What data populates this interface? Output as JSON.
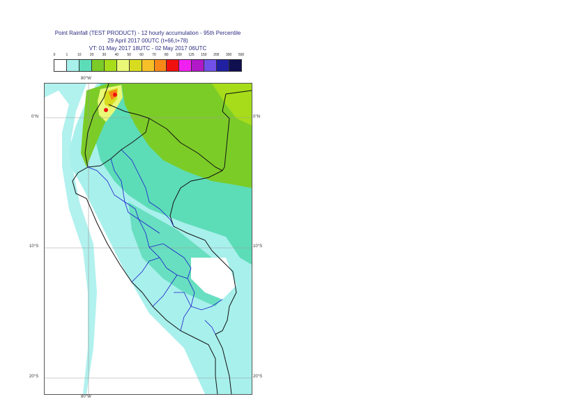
{
  "title": {
    "line1": "Point Rainfall (TEST PRODUCT) - 12 hourly accumulation - 95th Percentile",
    "line2": "29 April 2017 00UTC (t+66,t+78)",
    "line3": "VT: 01 May 2017 18UTC - 02 May 2017 06UTC"
  },
  "legend": {
    "labels": [
      "0",
      "1",
      "10",
      "20",
      "30",
      "40",
      "50",
      "60",
      "70",
      "80",
      "100",
      "125",
      "150",
      "200",
      "300",
      "500"
    ],
    "colors": [
      "#ffffff",
      "#a8f0ec",
      "#5ddcb8",
      "#7ccc28",
      "#a6dc1a",
      "#eaf878",
      "#d8dc20",
      "#f8c028",
      "#f88818",
      "#f01010",
      "#f020f0",
      "#b018c8",
      "#7050e8",
      "#2020a0",
      "#101050"
    ]
  },
  "axes": {
    "top_lon": "80°W",
    "bottom_lon": "80°W",
    "lat_0": "0°N",
    "lat_10": "10°S",
    "lat_20": "20°S"
  }
}
